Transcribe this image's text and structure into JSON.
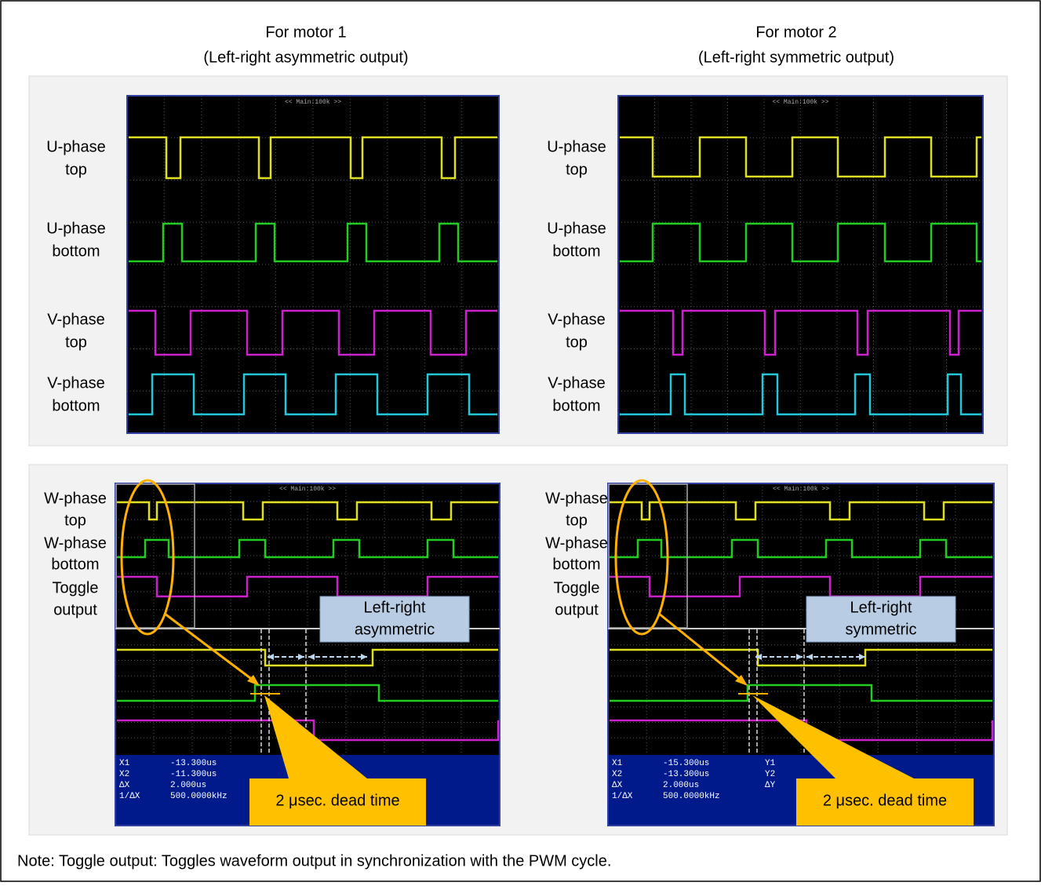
{
  "headers": [
    {
      "line1": "For motor 1",
      "line2": "(Left-right asymmetric output)"
    },
    {
      "line1": "For motor 2",
      "line2": "(Left-right symmetric output)"
    }
  ],
  "top_panel": {
    "scopes": [
      {
        "title": "<< Main:100k >>",
        "labels": [
          {
            "line1": "U-phase",
            "line2": "top"
          },
          {
            "line1": "U-phase",
            "line2": "bottom"
          },
          {
            "line1": "V-phase",
            "line2": "top"
          },
          {
            "line1": "V-phase",
            "line2": "bottom"
          }
        ]
      },
      {
        "title": "<< Main:100k >>",
        "labels": [
          {
            "line1": "U-phase",
            "line2": "top"
          },
          {
            "line1": "U-phase",
            "line2": "bottom"
          },
          {
            "line1": "V-phase",
            "line2": "top"
          },
          {
            "line1": "V-phase",
            "line2": "bottom"
          }
        ]
      }
    ]
  },
  "bottom_panel": {
    "scopes": [
      {
        "title": "<< Main:100k >>",
        "labels": [
          {
            "line1": "W-phase",
            "line2": "top"
          },
          {
            "line1": "W-phase",
            "line2": "bottom"
          },
          {
            "line1": "Toggle",
            "line2": "output"
          }
        ],
        "callout": {
          "line1": "Left-right",
          "line2": "asymmetric"
        },
        "dead_time": "2 μsec. dead time",
        "readout": [
          [
            "X1",
            "-13.300us"
          ],
          [
            "X2",
            "-11.300us"
          ],
          [
            "ΔX",
            "2.000us"
          ],
          [
            "1/ΔX",
            "500.0000kHz"
          ]
        ]
      },
      {
        "title": "<< Main:100k >>",
        "labels": [
          {
            "line1": "W-phase",
            "line2": "top"
          },
          {
            "line1": "W-phase",
            "line2": "bottom"
          },
          {
            "line1": "Toggle",
            "line2": "output"
          }
        ],
        "callout": {
          "line1": "Left-right",
          "line2": "symmetric"
        },
        "dead_time": "2 μsec. dead time",
        "readout": [
          [
            "X1",
            "-15.300us",
            "Y1"
          ],
          [
            "X2",
            "-13.300us",
            "Y2"
          ],
          [
            "ΔX",
            "2.000us",
            "ΔY"
          ],
          [
            "1/ΔX",
            "500.0000kHz"
          ]
        ]
      }
    ]
  },
  "note": "Note:   Toggle output: Toggles waveform output in synchronization with the PWM cycle."
}
